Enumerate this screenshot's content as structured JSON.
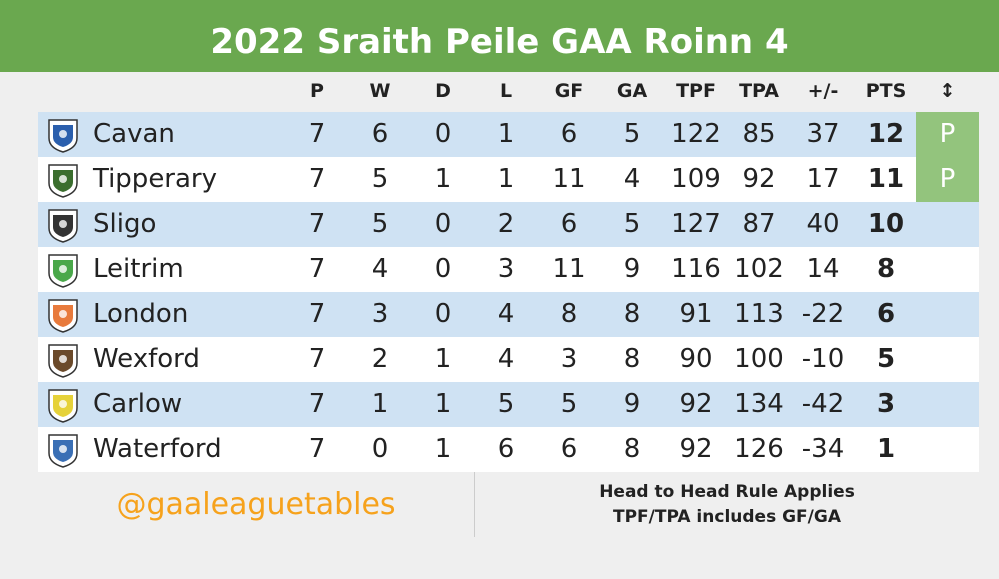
{
  "title": "2022 Sraith Peile GAA Roinn 4",
  "columns": {
    "p": "P",
    "w": "W",
    "d": "D",
    "l": "L",
    "gf": "GF",
    "ga": "GA",
    "tpf": "TPF",
    "tpa": "TPA",
    "diff": "+/-",
    "pts": "PTS",
    "move": "↕"
  },
  "rows": [
    {
      "team": "Cavan",
      "p": "7",
      "w": "6",
      "d": "0",
      "l": "1",
      "gf": "6",
      "ga": "5",
      "tpf": "122",
      "tpa": "85",
      "diff": "37",
      "pts": "12",
      "badge": "P",
      "crest_color": "#2b5fad"
    },
    {
      "team": "Tipperary",
      "p": "7",
      "w": "5",
      "d": "1",
      "l": "1",
      "gf": "11",
      "ga": "4",
      "tpf": "109",
      "tpa": "92",
      "diff": "17",
      "pts": "11",
      "badge": "P",
      "crest_color": "#3b6e2e"
    },
    {
      "team": "Sligo",
      "p": "7",
      "w": "5",
      "d": "0",
      "l": "2",
      "gf": "6",
      "ga": "5",
      "tpf": "127",
      "tpa": "87",
      "diff": "40",
      "pts": "10",
      "badge": "",
      "crest_color": "#333333"
    },
    {
      "team": "Leitrim",
      "p": "7",
      "w": "4",
      "d": "0",
      "l": "3",
      "gf": "11",
      "ga": "9",
      "tpf": "116",
      "tpa": "102",
      "diff": "14",
      "pts": "8",
      "badge": "",
      "crest_color": "#4aa84a"
    },
    {
      "team": "London",
      "p": "7",
      "w": "3",
      "d": "0",
      "l": "4",
      "gf": "8",
      "ga": "8",
      "tpf": "91",
      "tpa": "113",
      "diff": "-22",
      "pts": "6",
      "badge": "",
      "crest_color": "#e87a3c"
    },
    {
      "team": "Wexford",
      "p": "7",
      "w": "2",
      "d": "1",
      "l": "4",
      "gf": "3",
      "ga": "8",
      "tpf": "90",
      "tpa": "100",
      "diff": "-10",
      "pts": "5",
      "badge": "",
      "crest_color": "#6b4a2a"
    },
    {
      "team": "Carlow",
      "p": "7",
      "w": "1",
      "d": "1",
      "l": "5",
      "gf": "5",
      "ga": "9",
      "tpf": "92",
      "tpa": "134",
      "diff": "-42",
      "pts": "3",
      "badge": "",
      "crest_color": "#e6d23a"
    },
    {
      "team": "Waterford",
      "p": "7",
      "w": "0",
      "d": "1",
      "l": "6",
      "gf": "6",
      "ga": "8",
      "tpf": "92",
      "tpa": "126",
      "diff": "-34",
      "pts": "1",
      "badge": "",
      "crest_color": "#3a6fb5"
    }
  ],
  "footer": {
    "handle": "@gaaleaguetables",
    "note_line1": "Head to Head Rule Applies",
    "note_line2": "TPF/TPA includes GF/GA"
  },
  "colors": {
    "title_bg": "#6aa84f",
    "row_alt": "#cfe2f3",
    "badge_bg": "#93c47d",
    "handle": "#f6a21c"
  }
}
